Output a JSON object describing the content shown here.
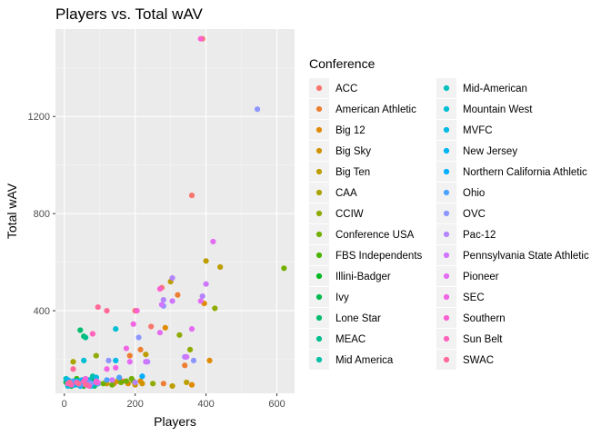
{
  "chart_data": {
    "type": "scatter",
    "title": "Players vs. Total wAV",
    "xlabel": "Players",
    "ylabel": "Total wAV",
    "xlim": [
      -25,
      650
    ],
    "ylim": [
      60,
      1560
    ],
    "xticks": [
      0,
      200,
      400,
      600
    ],
    "yticks": [
      400,
      800,
      1200
    ],
    "grid": true,
    "legend": {
      "title": "Conference",
      "placement": "right",
      "columns": 2
    },
    "series": [
      {
        "name": "ACC",
        "color": "#F8766D",
        "points": [
          [
            390,
            1520
          ],
          [
            360,
            875
          ],
          [
            275,
            495
          ],
          [
            245,
            335
          ],
          [
            200,
            400
          ],
          [
            165,
            110
          ]
        ]
      },
      {
        "name": "American Athletic",
        "color": "#EE7E32",
        "points": [
          [
            320,
            465
          ],
          [
            215,
            240
          ],
          [
            185,
            215
          ],
          [
            280,
            100
          ],
          [
            140,
            100
          ],
          [
            340,
            175
          ]
        ]
      },
      {
        "name": "Big 12",
        "color": "#E08A00",
        "points": [
          [
            410,
            195
          ],
          [
            395,
            430
          ],
          [
            285,
            330
          ],
          [
            215,
            110
          ],
          [
            180,
            100
          ],
          [
            360,
            95
          ]
        ]
      },
      {
        "name": "Big Sky",
        "color": "#D09400",
        "points": [
          [
            220,
            100
          ],
          [
            150,
            110
          ],
          [
            120,
            100
          ],
          [
            90,
            110
          ],
          [
            60,
            120
          ],
          [
            200,
            95
          ]
        ]
      },
      {
        "name": "Big Ten",
        "color": "#BD9D00",
        "points": [
          [
            440,
            580
          ],
          [
            300,
            520
          ],
          [
            400,
            605
          ],
          [
            230,
            220
          ],
          [
            345,
            105
          ],
          [
            305,
            90
          ]
        ]
      },
      {
        "name": "CAA",
        "color": "#A8A400",
        "points": [
          [
            25,
            190
          ],
          [
            95,
            100
          ],
          [
            40,
            110
          ],
          [
            70,
            95
          ],
          [
            15,
            105
          ],
          [
            45,
            100
          ]
        ]
      },
      {
        "name": "CCIW",
        "color": "#8FAA00",
        "points": [
          [
            425,
            410
          ],
          [
            355,
            240
          ],
          [
            325,
            300
          ],
          [
            195,
            110
          ],
          [
            90,
            215
          ],
          [
            250,
            100
          ]
        ]
      },
      {
        "name": "Conference USA",
        "color": "#72B000",
        "points": [
          [
            620,
            575
          ],
          [
            190,
            120
          ],
          [
            160,
            105
          ],
          [
            135,
            95
          ],
          [
            110,
            100
          ],
          [
            175,
            110
          ]
        ]
      },
      {
        "name": "FBS Independents",
        "color": "#4BB400",
        "points": [
          [
            75,
            110
          ],
          [
            60,
            100
          ],
          [
            50,
            95
          ],
          [
            35,
            120
          ],
          [
            20,
            90
          ],
          [
            85,
            95
          ]
        ]
      },
      {
        "name": "Illini-Badger",
        "color": "#00B81F",
        "points": [
          [
            40,
            95
          ],
          [
            25,
            100
          ],
          [
            10,
            110
          ],
          [
            55,
            90
          ],
          [
            30,
            105
          ],
          [
            65,
            100
          ]
        ]
      },
      {
        "name": "Ivy",
        "color": "#00BB4E",
        "points": [
          [
            50,
            95
          ],
          [
            35,
            115
          ],
          [
            20,
            90
          ],
          [
            65,
            100
          ],
          [
            80,
            110
          ],
          [
            5,
            105
          ]
        ]
      },
      {
        "name": "Lone Star",
        "color": "#00BD6E",
        "points": [
          [
            45,
            320
          ],
          [
            55,
            295
          ],
          [
            30,
            100
          ],
          [
            15,
            95
          ],
          [
            70,
            105
          ],
          [
            85,
            90
          ]
        ]
      },
      {
        "name": "MEAC",
        "color": "#00BF8C",
        "points": [
          [
            60,
            290
          ],
          [
            40,
            110
          ],
          [
            25,
            95
          ],
          [
            10,
            100
          ],
          [
            75,
            105
          ],
          [
            90,
            125
          ]
        ]
      },
      {
        "name": "Mid America",
        "color": "#00C0A6",
        "points": [
          [
            80,
            130
          ],
          [
            55,
            100
          ],
          [
            30,
            95
          ],
          [
            15,
            110
          ],
          [
            70,
            115
          ],
          [
            45,
            90
          ]
        ]
      },
      {
        "name": "Mid-American",
        "color": "#00C0BD",
        "points": [
          [
            65,
            115
          ],
          [
            50,
            105
          ],
          [
            35,
            100
          ],
          [
            20,
            95
          ],
          [
            5,
            120
          ],
          [
            85,
            100
          ]
        ]
      },
      {
        "name": "Mountain West",
        "color": "#00BED3",
        "points": [
          [
            145,
            325
          ],
          [
            55,
            195
          ],
          [
            40,
            110
          ],
          [
            25,
            100
          ],
          [
            70,
            95
          ],
          [
            10,
            90
          ]
        ]
      },
      {
        "name": "MVFC",
        "color": "#00BAE5",
        "points": [
          [
            145,
            195
          ],
          [
            90,
            125
          ],
          [
            70,
            110
          ],
          [
            50,
            100
          ],
          [
            30,
            95
          ],
          [
            15,
            105
          ]
        ]
      },
      {
        "name": "New Jersey",
        "color": "#00B5F4",
        "points": [
          [
            35,
            110
          ],
          [
            20,
            100
          ],
          [
            60,
            95
          ],
          [
            45,
            90
          ],
          [
            10,
            115
          ],
          [
            80,
            100
          ]
        ]
      },
      {
        "name": "Northern California Athletic",
        "color": "#00AEFF",
        "points": [
          [
            220,
            130
          ],
          [
            50,
            115
          ],
          [
            25,
            95
          ],
          [
            40,
            105
          ],
          [
            15,
            100
          ],
          [
            75,
            90
          ]
        ]
      },
      {
        "name": "Ohio",
        "color": "#4BA3FF",
        "points": [
          [
            155,
            125
          ],
          [
            120,
            115
          ],
          [
            95,
            100
          ],
          [
            70,
            105
          ],
          [
            45,
            95
          ],
          [
            25,
            110
          ]
        ]
      },
      {
        "name": "OVC",
        "color": "#8D96FF",
        "points": [
          [
            545,
            1230
          ],
          [
            365,
            195
          ],
          [
            280,
            420
          ],
          [
            210,
            290
          ],
          [
            125,
            195
          ],
          [
            75,
            100
          ]
        ]
      },
      {
        "name": "Pac-12",
        "color": "#B385FF",
        "points": [
          [
            305,
            535
          ],
          [
            280,
            445
          ],
          [
            390,
            460
          ],
          [
            340,
            210
          ],
          [
            235,
            190
          ],
          [
            200,
            105
          ]
        ]
      },
      {
        "name": "Pennsylvania State Athletic",
        "color": "#D075FD",
        "points": [
          [
            400,
            510
          ],
          [
            345,
            210
          ],
          [
            305,
            440
          ],
          [
            275,
            425
          ],
          [
            230,
            190
          ],
          [
            135,
            115
          ]
        ]
      },
      {
        "name": "Pioneer",
        "color": "#E46CF2",
        "points": [
          [
            420,
            685
          ],
          [
            385,
            440
          ],
          [
            360,
            325
          ],
          [
            270,
            310
          ],
          [
            185,
            190
          ],
          [
            95,
            105
          ]
        ]
      },
      {
        "name": "SEC",
        "color": "#F264E3",
        "points": [
          [
            195,
            345
          ],
          [
            175,
            245
          ],
          [
            145,
            165
          ],
          [
            120,
            160
          ],
          [
            90,
            110
          ],
          [
            60,
            120
          ]
        ]
      },
      {
        "name": "Southern",
        "color": "#FB61D1",
        "points": [
          [
            385,
            1520
          ],
          [
            270,
            490
          ],
          [
            205,
            400
          ],
          [
            90,
            105
          ],
          [
            65,
            95
          ],
          [
            40,
            100
          ]
        ]
      },
      {
        "name": "Sun Belt",
        "color": "#FF63BC",
        "points": [
          [
            80,
            305
          ],
          [
            35,
            105
          ],
          [
            20,
            95
          ],
          [
            55,
            110
          ],
          [
            10,
            100
          ],
          [
            70,
            90
          ]
        ]
      },
      {
        "name": "SWAC",
        "color": "#FF6A98",
        "points": [
          [
            120,
            400
          ],
          [
            95,
            415
          ],
          [
            25,
            160
          ],
          [
            40,
            100
          ],
          [
            15,
            105
          ],
          [
            60,
            95
          ]
        ]
      }
    ]
  }
}
